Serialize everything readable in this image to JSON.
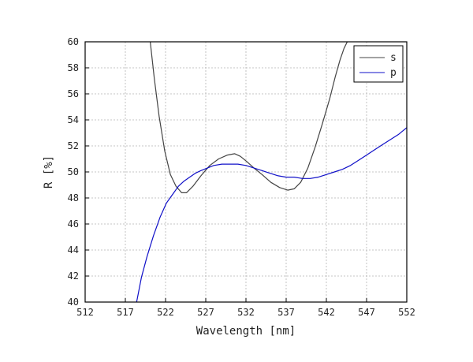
{
  "chart_data": {
    "type": "line",
    "xlabel": "Wavelength [nm]",
    "ylabel": "R [%]",
    "xlim": [
      512,
      552
    ],
    "ylim": [
      40,
      60
    ],
    "xticks": [
      512,
      517,
      522,
      527,
      532,
      537,
      542,
      547,
      552
    ],
    "yticks": [
      40,
      42,
      44,
      46,
      48,
      50,
      52,
      54,
      56,
      58,
      60
    ],
    "grid": true,
    "legend_position": "top-right",
    "series": [
      {
        "name": "s",
        "color": "#444444",
        "x": [
          520.1,
          520.6,
          521.2,
          521.9,
          522.6,
          523.3,
          524.0,
          524.6,
          525.4,
          526.4,
          527.5,
          528.6,
          529.7,
          530.6,
          531.3,
          532.1,
          533.0,
          534.0,
          535.1,
          536.2,
          537.2,
          538.0,
          538.8,
          539.7,
          540.6,
          541.5,
          542.4,
          543.1,
          543.7,
          544.2,
          544.6
        ],
        "y": [
          60.0,
          57.2,
          54.3,
          51.6,
          49.8,
          48.9,
          48.4,
          48.4,
          48.9,
          49.7,
          50.5,
          51.0,
          51.3,
          51.4,
          51.2,
          50.8,
          50.3,
          49.8,
          49.2,
          48.8,
          48.6,
          48.7,
          49.2,
          50.3,
          51.9,
          53.7,
          55.6,
          57.3,
          58.6,
          59.5,
          60.0
        ]
      },
      {
        "name": "p",
        "color": "#1010c8",
        "x": [
          518.4,
          519.0,
          519.7,
          520.5,
          521.3,
          522.1,
          522.9,
          523.6,
          524.3,
          525.0,
          525.7,
          526.4,
          527.2,
          528.0,
          529.0,
          530.0,
          531.0,
          532.0,
          533.0,
          534.0,
          535.0,
          536.0,
          537.0,
          538.0,
          539.0,
          540.0,
          541.0,
          542.0,
          543.0,
          544.0,
          545.0,
          546.0,
          547.0,
          548.0,
          549.0,
          550.0,
          551.0,
          552.0
        ],
        "y": [
          40.0,
          41.9,
          43.5,
          45.1,
          46.5,
          47.6,
          48.3,
          48.9,
          49.3,
          49.6,
          49.9,
          50.1,
          50.3,
          50.5,
          50.6,
          50.6,
          50.6,
          50.5,
          50.3,
          50.1,
          49.9,
          49.7,
          49.6,
          49.6,
          49.5,
          49.5,
          49.6,
          49.8,
          50.0,
          50.2,
          50.5,
          50.9,
          51.3,
          51.7,
          52.1,
          52.5,
          52.9,
          53.4
        ]
      }
    ]
  }
}
